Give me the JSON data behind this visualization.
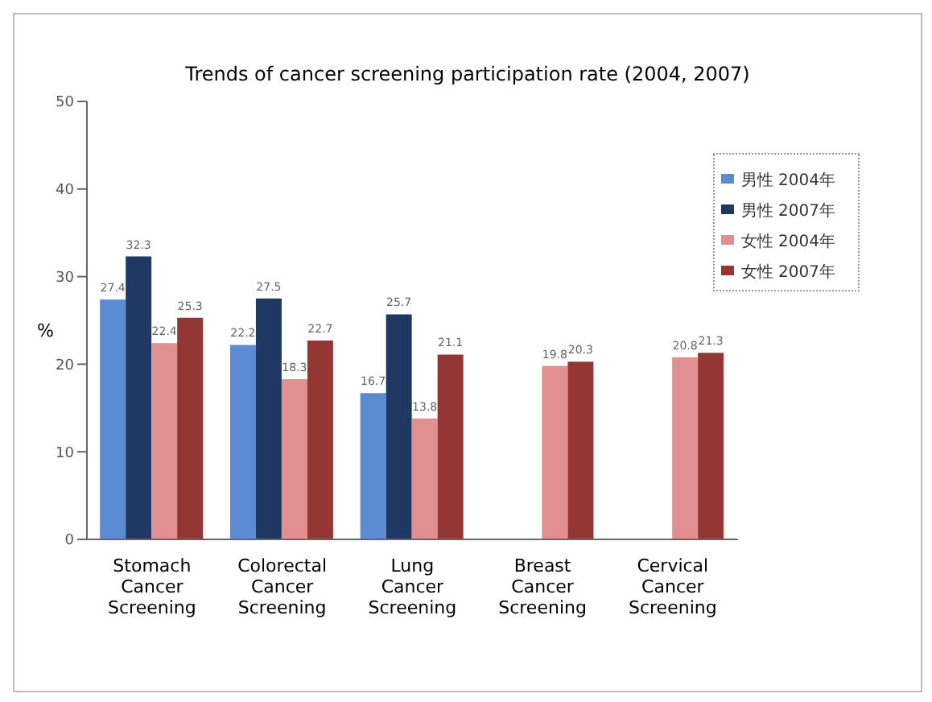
{
  "chart_data": {
    "type": "bar",
    "title": "Trends of cancer screening participation rate (2004, 2007)",
    "ylabel": "%",
    "categories": [
      "Stomach Cancer Screening",
      "Colorectal Cancer Screening",
      "Lung Cancer Screening",
      "Breast Cancer Screening",
      "Cervical Cancer Screening"
    ],
    "series": [
      {
        "name": "男性 2004年",
        "color": "#5b8bd0",
        "values": [
          27.4,
          22.2,
          16.7,
          null,
          null
        ]
      },
      {
        "name": "男性 2007年",
        "color": "#1f3864",
        "values": [
          32.3,
          27.5,
          25.7,
          null,
          null
        ]
      },
      {
        "name": "女性 2004年",
        "color": "#e0908f",
        "values": [
          22.4,
          18.3,
          13.8,
          19.8,
          20.8
        ]
      },
      {
        "name": "女性 2007年",
        "color": "#943634",
        "values": [
          25.3,
          22.7,
          21.1,
          20.3,
          21.3
        ]
      }
    ],
    "ylim": [
      0,
      50
    ],
    "yticks": [
      0,
      10,
      20,
      30,
      40,
      50
    ],
    "grid": false,
    "legend": "top right",
    "data_labels": true
  }
}
